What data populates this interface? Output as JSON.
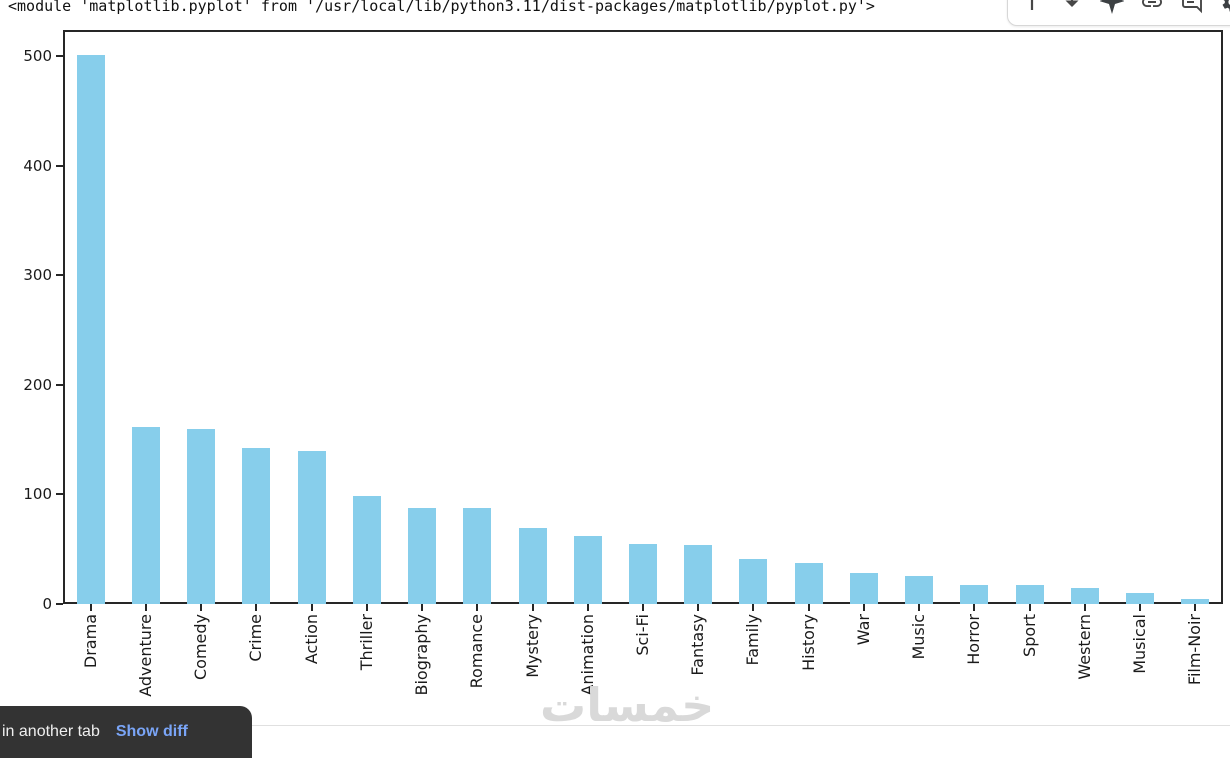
{
  "console": {
    "output": "<module 'matplotlib.pyplot' from '/usr/local/lib/python3.11/dist-packages/matplotlib/pyplot.py'>"
  },
  "cell_toolbar": {
    "icons": [
      "move-cell-up-icon",
      "move-cell-down-icon",
      "gemini-spark-icon",
      "copy-link-icon",
      "comment-icon",
      "settings-gear-icon"
    ]
  },
  "chart_data": {
    "type": "bar",
    "title": "",
    "xlabel": "",
    "ylabel": "",
    "categories": [
      "Drama",
      "Adventure",
      "Comedy",
      "Crime",
      "Action",
      "Thriller",
      "Biography",
      "Romance",
      "Mystery",
      "Animation",
      "Sci-Fi",
      "Fantasy",
      "Family",
      "History",
      "War",
      "Music",
      "Horror",
      "Sport",
      "Western",
      "Musical",
      "Film-Noir"
    ],
    "values": [
      501,
      162,
      160,
      142,
      140,
      99,
      88,
      88,
      69,
      62,
      55,
      54,
      41,
      37,
      28,
      26,
      17,
      17,
      15,
      10,
      5
    ],
    "yticks": [
      0,
      100,
      200,
      300,
      400,
      500
    ],
    "ylim": [
      0,
      524
    ],
    "bar_color": "#87ceeb",
    "grid": false,
    "legend": null,
    "x_tick_rotation_deg": 90
  },
  "snackbar": {
    "message": "in another tab",
    "action": "Show diff"
  },
  "watermark": {
    "text": "خمسات"
  }
}
